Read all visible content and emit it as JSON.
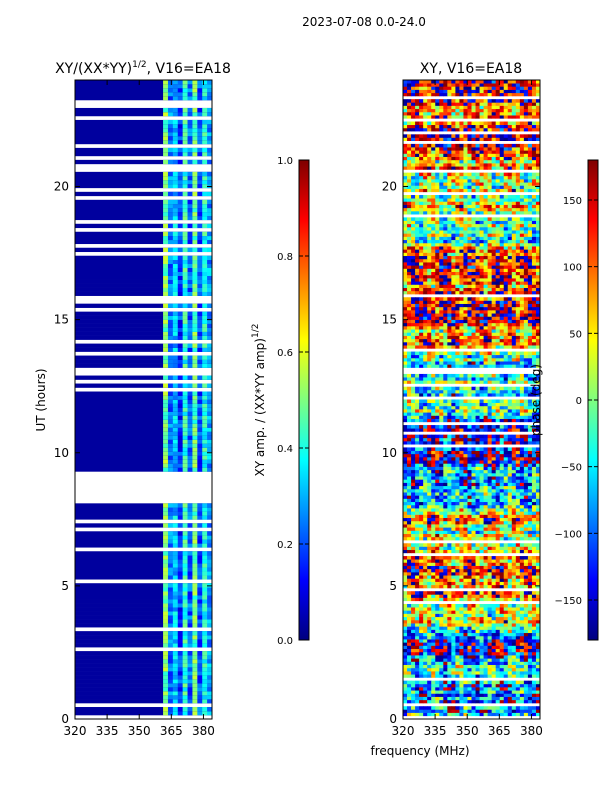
{
  "figure": {
    "suptitle": "2023-07-08 0.0-24.0",
    "xlabel": "frequency (MHz)"
  },
  "colormap": [
    "#00007f",
    "#0000ff",
    "#007fff",
    "#00ffff",
    "#7fff7f",
    "#ffff00",
    "#ff7f00",
    "#ff0000",
    "#7f0000"
  ],
  "chart_data": [
    {
      "type": "heatmap",
      "title": "XY/(XX*YY)",
      "title_sup": "1/2",
      "title_suffix": ", V16=EA18",
      "ylabel": "UT (hours)",
      "xlim": [
        320,
        384
      ],
      "ylim": [
        0,
        24
      ],
      "xticks": [
        320,
        335,
        350,
        365,
        380
      ],
      "yticks": [
        0,
        5,
        10,
        15,
        20
      ],
      "values_summary": "Mostly low amplitude (~0.0-0.1) below 361 MHz; channels 361-384 MHz show banded values ~0.3-0.55; many horizontal data gaps (white rows)."
    },
    {
      "type": "colorbar",
      "label": "XY amp. / (XX*YY amp)",
      "label_sup": "1/2",
      "range": [
        0.0,
        1.0
      ],
      "ticks": [
        "0.0",
        "0.2",
        "0.4",
        "0.6",
        "0.8",
        "1.0"
      ]
    },
    {
      "type": "heatmap",
      "title": "XY, V16=EA18",
      "ylabel": "",
      "xlim": [
        320,
        384
      ],
      "ylim": [
        0,
        24
      ],
      "xticks": [
        320,
        335,
        350,
        365,
        380
      ],
      "yticks": [
        0,
        5,
        10,
        15,
        20
      ],
      "values_summary": "Phase values spread across -180 to 180 deg; noisy structure with horizontal bands and many data gaps."
    },
    {
      "type": "colorbar",
      "label": "phase (deg)",
      "range": [
        -180,
        180
      ],
      "ticks": [
        "−150",
        "−100",
        "−50",
        "0",
        "50",
        "100",
        "150"
      ],
      "tick_values": [
        -150,
        -100,
        -50,
        0,
        50,
        100,
        150
      ]
    }
  ]
}
